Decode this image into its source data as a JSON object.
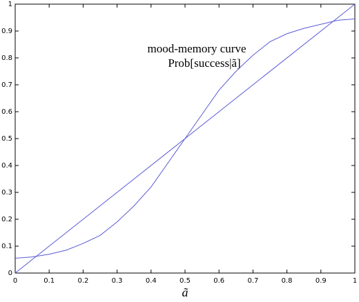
{
  "chart_data": {
    "type": "line",
    "xlabel": "ã",
    "annotations": [
      "mood-memory curve",
      "Prob[success|ã]"
    ],
    "xlim": [
      0,
      1
    ],
    "ylim": [
      0,
      1
    ],
    "xticks": [
      0,
      0.1,
      0.2,
      0.3,
      0.4,
      0.5,
      0.6,
      0.7,
      0.8,
      0.9,
      1
    ],
    "yticks": [
      0,
      0.1,
      0.2,
      0.3,
      0.4,
      0.5,
      0.6,
      0.7,
      0.8,
      0.9,
      1
    ],
    "series": [
      {
        "color": "#5a5ad6",
        "x": [
          0,
          1
        ],
        "values": [
          0,
          1
        ]
      },
      {
        "color": "#5a5ad6",
        "x": [
          0,
          0.05,
          0.1,
          0.15,
          0.2,
          0.25,
          0.3,
          0.35,
          0.4,
          0.45,
          0.5,
          0.55,
          0.6,
          0.65,
          0.7,
          0.75,
          0.8,
          0.85,
          0.9,
          0.95,
          1
        ],
        "values": [
          0.055,
          0.06,
          0.07,
          0.085,
          0.11,
          0.14,
          0.19,
          0.25,
          0.32,
          0.41,
          0.5,
          0.59,
          0.68,
          0.75,
          0.81,
          0.86,
          0.89,
          0.91,
          0.925,
          0.94,
          0.945
        ]
      }
    ]
  }
}
